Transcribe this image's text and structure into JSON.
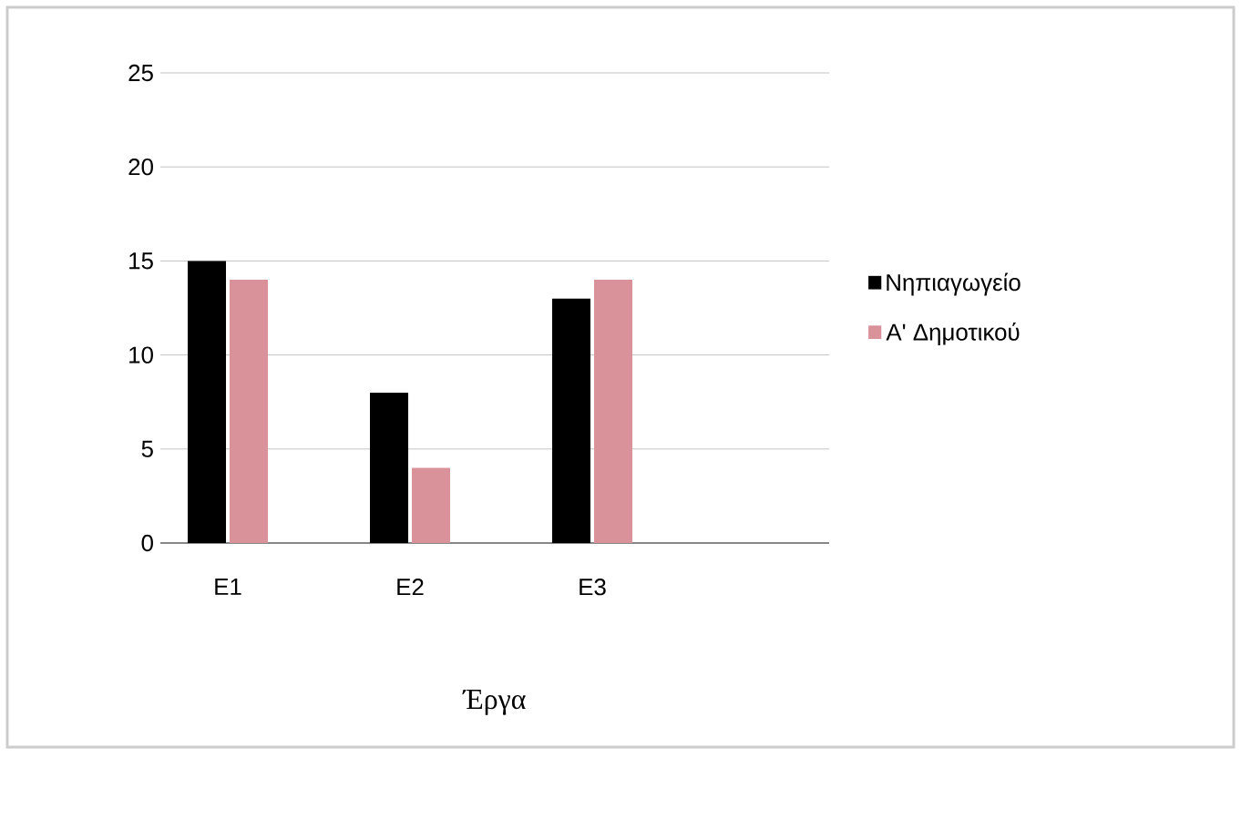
{
  "chart_data": {
    "type": "bar",
    "xlabel": "Έργα",
    "categories": [
      "E1",
      "E2",
      "E3"
    ],
    "series": [
      {
        "name": "Νηπιαγωγείο",
        "color": "#000000",
        "values": [
          15,
          8,
          13
        ]
      },
      {
        "name": "Α' Δημοτικού",
        "color": "#d9929a",
        "values": [
          14,
          4,
          14
        ]
      }
    ],
    "ylim": [
      0,
      25
    ],
    "yticks": [
      0,
      5,
      10,
      15,
      20,
      25
    ],
    "grid": "y",
    "legend": "right"
  }
}
